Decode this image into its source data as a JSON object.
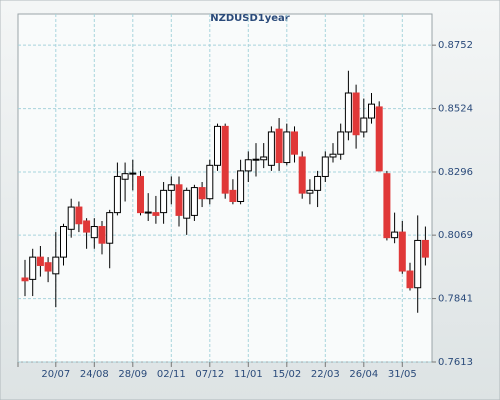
{
  "chart_data": {
    "type": "candlestick",
    "title": "NZDUSD1year",
    "categories": [
      null,
      null,
      null,
      null,
      "20/07",
      null,
      null,
      null,
      null,
      "24/08",
      null,
      null,
      null,
      null,
      "28/09",
      null,
      null,
      null,
      null,
      "02/11",
      null,
      null,
      null,
      null,
      "07/12",
      null,
      null,
      null,
      null,
      "11/01",
      null,
      null,
      null,
      null,
      "15/02",
      null,
      null,
      null,
      null,
      "22/03",
      null,
      null,
      null,
      null,
      "26/04",
      null,
      null,
      null,
      null,
      "31/05",
      null,
      null,
      null
    ],
    "open": [
      0.7915,
      0.791,
      0.799,
      0.797,
      0.793,
      0.799,
      0.809,
      0.817,
      0.812,
      0.806,
      0.81,
      0.804,
      0.815,
      0.827,
      0.829,
      0.828,
      0.815,
      0.815,
      0.815,
      0.823,
      0.825,
      0.813,
      0.814,
      0.824,
      0.82,
      0.832,
      0.846,
      0.823,
      0.819,
      0.83,
      0.834,
      0.834,
      0.832,
      0.845,
      0.833,
      0.844,
      0.835,
      0.822,
      0.823,
      0.828,
      0.835,
      0.836,
      0.844,
      0.858,
      0.844,
      0.849,
      0.853,
      0.829,
      0.806,
      0.808,
      0.794,
      0.788,
      0.805
    ],
    "high": [
      0.798,
      0.802,
      0.803,
      0.799,
      0.808,
      0.811,
      0.82,
      0.819,
      0.813,
      0.813,
      0.812,
      0.816,
      0.833,
      0.833,
      0.834,
      0.83,
      0.822,
      0.821,
      0.826,
      0.828,
      0.828,
      0.824,
      0.825,
      0.826,
      0.834,
      0.847,
      0.847,
      0.827,
      0.834,
      0.837,
      0.84,
      0.84,
      0.846,
      0.849,
      0.847,
      0.846,
      0.837,
      0.827,
      0.83,
      0.837,
      0.84,
      0.847,
      0.866,
      0.861,
      0.856,
      0.858,
      0.855,
      0.83,
      0.815,
      0.812,
      0.797,
      0.814,
      0.81
    ],
    "low": [
      0.785,
      0.785,
      0.792,
      0.79,
      0.781,
      0.796,
      0.806,
      0.808,
      0.802,
      0.802,
      0.8,
      0.795,
      0.814,
      0.819,
      0.823,
      0.814,
      0.812,
      0.811,
      0.811,
      0.818,
      0.81,
      0.807,
      0.812,
      0.817,
      0.818,
      0.83,
      0.82,
      0.818,
      0.818,
      0.826,
      0.828,
      0.831,
      0.83,
      0.83,
      0.832,
      0.833,
      0.82,
      0.818,
      0.817,
      0.826,
      0.833,
      0.834,
      0.841,
      0.838,
      0.842,
      0.847,
      0.83,
      0.805,
      0.804,
      0.793,
      0.787,
      0.779,
      0.796
    ],
    "close": [
      0.7905,
      0.799,
      0.796,
      0.794,
      0.799,
      0.81,
      0.817,
      0.811,
      0.808,
      0.81,
      0.804,
      0.815,
      0.828,
      0.829,
      0.8292,
      0.815,
      0.8152,
      0.814,
      0.823,
      0.825,
      0.814,
      0.823,
      0.824,
      0.82,
      0.832,
      0.846,
      0.822,
      0.819,
      0.83,
      0.834,
      0.8342,
      0.835,
      0.844,
      0.833,
      0.844,
      0.836,
      0.822,
      0.823,
      0.828,
      0.835,
      0.836,
      0.844,
      0.858,
      0.843,
      0.849,
      0.854,
      0.83,
      0.806,
      0.808,
      0.794,
      0.788,
      0.805,
      0.799
    ],
    "up_color": "#ffffff",
    "down_color": "#e03838",
    "ylim": [
      0.7613,
      0.8864
    ],
    "yticks": [
      0.7613,
      0.7841,
      0.8069,
      0.8296,
      0.8524,
      0.8752
    ],
    "grid": true
  }
}
